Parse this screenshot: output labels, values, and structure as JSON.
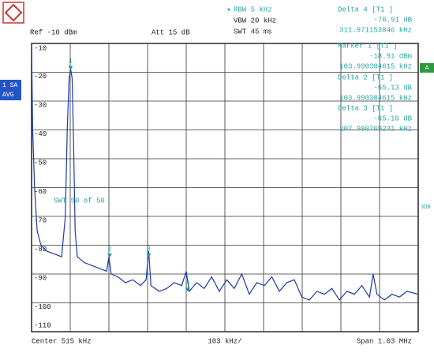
{
  "chart_data": {
    "type": "line",
    "rbw": "RBW 5 kHz",
    "vbw": "VBW 20 kHz",
    "swt": "SWT 45 ms",
    "ref": "Ref -10 dBm",
    "att": "Att 15 dB",
    "trace_mode": [
      "1 SA",
      "AVG"
    ],
    "side_flag": "A",
    "side_note": "3DB",
    "sweep_note": "SWT    50 of    50",
    "readouts": [
      {
        "title": "Delta 4 [T1 ]",
        "level": "-76.91 dB",
        "freq": "311.971153846 kHz"
      },
      {
        "title": "Marker 1 [T1 ]",
        "level": "-18.91 dBm",
        "freq": "103.990384615 kHz"
      },
      {
        "title": "Delta 2 [T1 ]",
        "level": "-65.13 dB",
        "freq": "103.990384615 kHz"
      },
      {
        "title": "Delta 3 [T1 ]",
        "level": "-65.10 dB",
        "freq": "207.980769231 kHz"
      }
    ],
    "center": "Center  515 kHz",
    "per_div": "103 kHz/",
    "span": "Span  1.03 MHz",
    "xlim": [
      0,
      1030
    ],
    "ylim": [
      -110,
      -10
    ],
    "yticks": [
      -10,
      -20,
      -30,
      -40,
      -50,
      -60,
      -70,
      -80,
      -90,
      -100,
      -110
    ],
    "grid": true,
    "series": [
      {
        "name": "Trace 1",
        "color": "#1c3aa8",
        "x": [
          0,
          3,
          8,
          15,
          25,
          40,
          60,
          80,
          90,
          95,
          100,
          104,
          108,
          112,
          116,
          122,
          140,
          160,
          180,
          200,
          206,
          212,
          230,
          250,
          270,
          290,
          305,
          312,
          318,
          340,
          360,
          380,
          400,
          412,
          420,
          440,
          460,
          480,
          500,
          520,
          540,
          560,
          580,
          600,
          620,
          640,
          660,
          680,
          700,
          720,
          740,
          760,
          780,
          800,
          820,
          840,
          860,
          880,
          900,
          910,
          920,
          940,
          960,
          980,
          1000,
          1030
        ],
        "values": [
          -10,
          -40,
          -60,
          -75,
          -80,
          -82,
          -83,
          -84,
          -70,
          -40,
          -22,
          -18.91,
          -22,
          -45,
          -75,
          -84,
          -86,
          -87,
          -88,
          -89,
          -84,
          -90,
          -91,
          -93,
          -92,
          -94,
          -92,
          -82,
          -94,
          -96,
          -95,
          -93,
          -94,
          -89,
          -96,
          -93,
          -95,
          -91,
          -96,
          -92,
          -95,
          -90,
          -97,
          -93,
          -94,
          -91,
          -96,
          -93,
          -92,
          -98,
          -99,
          -96,
          -97,
          -95,
          -99,
          -96,
          -97,
          -94,
          -98,
          -90,
          -97,
          -99,
          -97,
          -98,
          -96,
          -97
        ]
      }
    ],
    "markers": {
      "color": "#1a9a9a",
      "labels": [
        "1",
        "2",
        "3",
        "4"
      ],
      "x": [
        104,
        208,
        312,
        416
      ],
      "values": [
        -18.91,
        -84.04,
        -84.01,
        -95.82
      ]
    }
  }
}
